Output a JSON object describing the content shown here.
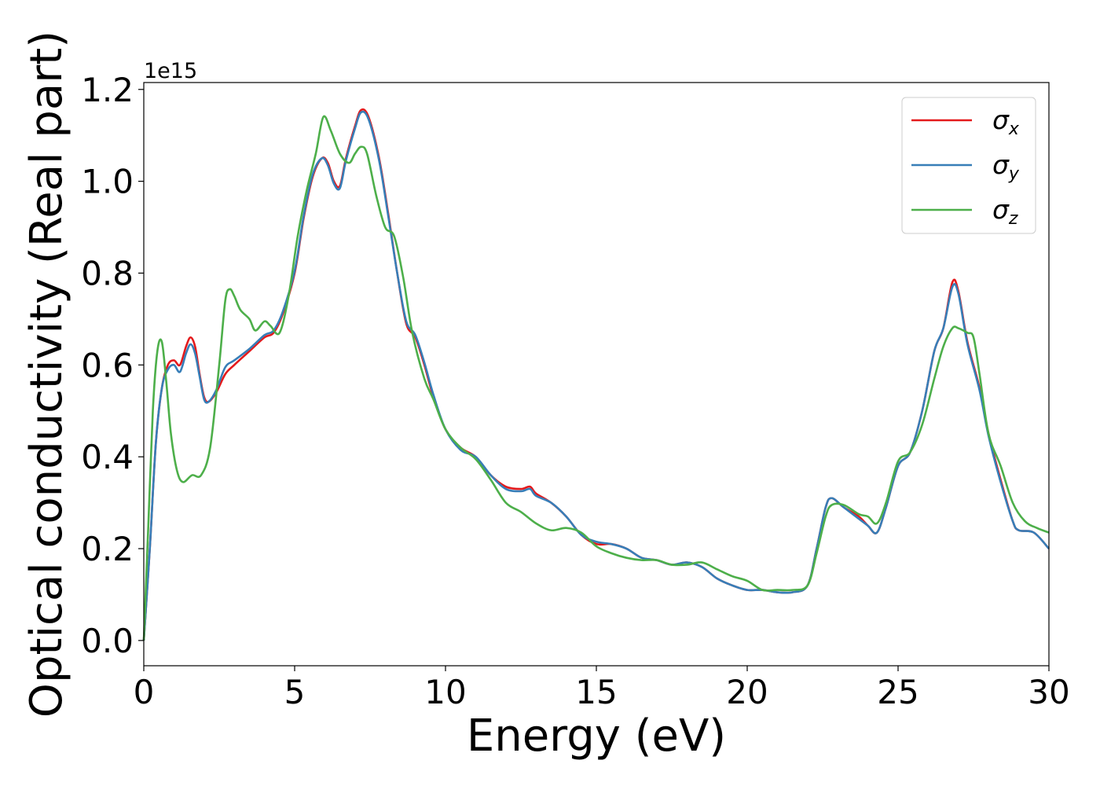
{
  "chart_data": {
    "type": "line",
    "title": "",
    "xlabel": "Energy (eV)",
    "ylabel": "Optical conductivity (Real part)",
    "y_offset_label": "1e15",
    "xlim": [
      0,
      30
    ],
    "ylim": [
      -0.055,
      1.215
    ],
    "grid": false,
    "legend_position": "top-right",
    "x_ticks": [
      0,
      5,
      10,
      15,
      20,
      25,
      30
    ],
    "x_tick_labels": [
      "0",
      "5",
      "10",
      "15",
      "20",
      "25",
      "30"
    ],
    "y_ticks": [
      0.0,
      0.2,
      0.4,
      0.6,
      0.8,
      1.0,
      1.2
    ],
    "y_tick_labels": [
      "0.0",
      "0.2",
      "0.4",
      "0.6",
      "0.8",
      "1.0",
      "1.2"
    ],
    "series": [
      {
        "name": "σx",
        "symbol": "σ",
        "subscript": "x",
        "color": "#e41a1c",
        "points": [
          [
            0,
            0.0
          ],
          [
            0.2,
            0.2
          ],
          [
            0.4,
            0.43
          ],
          [
            0.6,
            0.55
          ],
          [
            0.8,
            0.6
          ],
          [
            1.0,
            0.61
          ],
          [
            1.2,
            0.6
          ],
          [
            1.4,
            0.64
          ],
          [
            1.55,
            0.66
          ],
          [
            1.7,
            0.64
          ],
          [
            1.85,
            0.58
          ],
          [
            2.0,
            0.53
          ],
          [
            2.15,
            0.52
          ],
          [
            2.4,
            0.54
          ],
          [
            2.7,
            0.58
          ],
          [
            3.0,
            0.6
          ],
          [
            3.5,
            0.63
          ],
          [
            4.0,
            0.66
          ],
          [
            4.3,
            0.67
          ],
          [
            4.6,
            0.71
          ],
          [
            5.0,
            0.8
          ],
          [
            5.3,
            0.92
          ],
          [
            5.6,
            1.01
          ],
          [
            5.9,
            1.05
          ],
          [
            6.1,
            1.04
          ],
          [
            6.3,
            1.0
          ],
          [
            6.5,
            0.99
          ],
          [
            6.7,
            1.05
          ],
          [
            7.0,
            1.12
          ],
          [
            7.2,
            1.155
          ],
          [
            7.45,
            1.14
          ],
          [
            7.8,
            1.05
          ],
          [
            8.1,
            0.93
          ],
          [
            8.4,
            0.8
          ],
          [
            8.7,
            0.69
          ],
          [
            9.0,
            0.66
          ],
          [
            9.3,
            0.6
          ],
          [
            9.6,
            0.53
          ],
          [
            10.0,
            0.46
          ],
          [
            10.5,
            0.42
          ],
          [
            11.0,
            0.4
          ],
          [
            11.5,
            0.36
          ],
          [
            12.0,
            0.335
          ],
          [
            12.5,
            0.33
          ],
          [
            12.8,
            0.335
          ],
          [
            13.0,
            0.32
          ],
          [
            13.5,
            0.3
          ],
          [
            14.0,
            0.27
          ],
          [
            14.5,
            0.23
          ],
          [
            15.0,
            0.21
          ],
          [
            15.5,
            0.21
          ],
          [
            16.0,
            0.2
          ],
          [
            16.5,
            0.18
          ],
          [
            17.0,
            0.175
          ],
          [
            17.5,
            0.165
          ],
          [
            18.0,
            0.17
          ],
          [
            18.5,
            0.16
          ],
          [
            19.0,
            0.135
          ],
          [
            19.5,
            0.12
          ],
          [
            20.0,
            0.11
          ],
          [
            20.5,
            0.11
          ],
          [
            21.0,
            0.105
          ],
          [
            21.5,
            0.105
          ],
          [
            22.0,
            0.12
          ],
          [
            22.3,
            0.2
          ],
          [
            22.6,
            0.29
          ],
          [
            22.8,
            0.31
          ],
          [
            23.2,
            0.29
          ],
          [
            23.7,
            0.27
          ],
          [
            24.0,
            0.25
          ],
          [
            24.3,
            0.235
          ],
          [
            24.6,
            0.29
          ],
          [
            25.0,
            0.38
          ],
          [
            25.4,
            0.41
          ],
          [
            25.8,
            0.5
          ],
          [
            26.2,
            0.63
          ],
          [
            26.5,
            0.68
          ],
          [
            26.8,
            0.78
          ],
          [
            27.0,
            0.76
          ],
          [
            27.3,
            0.65
          ],
          [
            27.7,
            0.55
          ],
          [
            28.0,
            0.45
          ],
          [
            28.4,
            0.35
          ],
          [
            28.8,
            0.26
          ],
          [
            29.0,
            0.24
          ],
          [
            29.5,
            0.235
          ],
          [
            30.0,
            0.2
          ]
        ]
      },
      {
        "name": "σy",
        "symbol": "σ",
        "subscript": "y",
        "color": "#377eb8",
        "points": [
          [
            0,
            0.0
          ],
          [
            0.2,
            0.2
          ],
          [
            0.4,
            0.43
          ],
          [
            0.6,
            0.55
          ],
          [
            0.8,
            0.59
          ],
          [
            1.0,
            0.6
          ],
          [
            1.2,
            0.585
          ],
          [
            1.4,
            0.625
          ],
          [
            1.55,
            0.645
          ],
          [
            1.7,
            0.625
          ],
          [
            1.85,
            0.575
          ],
          [
            2.0,
            0.525
          ],
          [
            2.15,
            0.52
          ],
          [
            2.4,
            0.545
          ],
          [
            2.7,
            0.595
          ],
          [
            3.0,
            0.61
          ],
          [
            3.5,
            0.635
          ],
          [
            4.0,
            0.665
          ],
          [
            4.3,
            0.675
          ],
          [
            4.6,
            0.715
          ],
          [
            5.0,
            0.805
          ],
          [
            5.3,
            0.925
          ],
          [
            5.6,
            1.015
          ],
          [
            5.9,
            1.05
          ],
          [
            6.1,
            1.035
          ],
          [
            6.3,
            0.995
          ],
          [
            6.5,
            0.985
          ],
          [
            6.7,
            1.045
          ],
          [
            7.0,
            1.115
          ],
          [
            7.2,
            1.15
          ],
          [
            7.45,
            1.135
          ],
          [
            7.8,
            1.045
          ],
          [
            8.1,
            0.925
          ],
          [
            8.4,
            0.8
          ],
          [
            8.7,
            0.695
          ],
          [
            9.0,
            0.665
          ],
          [
            9.3,
            0.605
          ],
          [
            9.6,
            0.535
          ],
          [
            10.0,
            0.46
          ],
          [
            10.5,
            0.415
          ],
          [
            11.0,
            0.4
          ],
          [
            11.5,
            0.36
          ],
          [
            12.0,
            0.33
          ],
          [
            12.5,
            0.325
          ],
          [
            12.8,
            0.33
          ],
          [
            13.0,
            0.315
          ],
          [
            13.5,
            0.3
          ],
          [
            14.0,
            0.27
          ],
          [
            14.5,
            0.23
          ],
          [
            15.0,
            0.215
          ],
          [
            15.5,
            0.21
          ],
          [
            16.0,
            0.2
          ],
          [
            16.5,
            0.18
          ],
          [
            17.0,
            0.175
          ],
          [
            17.5,
            0.165
          ],
          [
            18.0,
            0.17
          ],
          [
            18.5,
            0.16
          ],
          [
            19.0,
            0.135
          ],
          [
            19.5,
            0.12
          ],
          [
            20.0,
            0.11
          ],
          [
            20.5,
            0.11
          ],
          [
            21.0,
            0.105
          ],
          [
            21.5,
            0.105
          ],
          [
            22.0,
            0.12
          ],
          [
            22.3,
            0.2
          ],
          [
            22.6,
            0.29
          ],
          [
            22.8,
            0.31
          ],
          [
            23.2,
            0.29
          ],
          [
            23.7,
            0.265
          ],
          [
            24.0,
            0.25
          ],
          [
            24.3,
            0.235
          ],
          [
            24.6,
            0.29
          ],
          [
            25.0,
            0.38
          ],
          [
            25.4,
            0.41
          ],
          [
            25.8,
            0.5
          ],
          [
            26.2,
            0.63
          ],
          [
            26.5,
            0.68
          ],
          [
            26.8,
            0.77
          ],
          [
            27.0,
            0.755
          ],
          [
            27.3,
            0.645
          ],
          [
            27.7,
            0.545
          ],
          [
            28.0,
            0.445
          ],
          [
            28.4,
            0.345
          ],
          [
            28.8,
            0.26
          ],
          [
            29.0,
            0.24
          ],
          [
            29.5,
            0.235
          ],
          [
            30.0,
            0.2
          ]
        ]
      },
      {
        "name": "σz",
        "symbol": "σ",
        "subscript": "z",
        "color": "#4daf4a",
        "points": [
          [
            0,
            0.0
          ],
          [
            0.15,
            0.25
          ],
          [
            0.3,
            0.5
          ],
          [
            0.45,
            0.63
          ],
          [
            0.6,
            0.65
          ],
          [
            0.75,
            0.56
          ],
          [
            0.9,
            0.45
          ],
          [
            1.1,
            0.37
          ],
          [
            1.3,
            0.345
          ],
          [
            1.6,
            0.36
          ],
          [
            1.9,
            0.36
          ],
          [
            2.2,
            0.42
          ],
          [
            2.5,
            0.6
          ],
          [
            2.7,
            0.74
          ],
          [
            2.85,
            0.765
          ],
          [
            3.0,
            0.75
          ],
          [
            3.2,
            0.72
          ],
          [
            3.5,
            0.7
          ],
          [
            3.7,
            0.675
          ],
          [
            4.0,
            0.695
          ],
          [
            4.2,
            0.685
          ],
          [
            4.5,
            0.67
          ],
          [
            4.8,
            0.75
          ],
          [
            5.1,
            0.88
          ],
          [
            5.4,
            0.98
          ],
          [
            5.7,
            1.06
          ],
          [
            5.95,
            1.14
          ],
          [
            6.2,
            1.11
          ],
          [
            6.5,
            1.06
          ],
          [
            6.8,
            1.04
          ],
          [
            7.0,
            1.06
          ],
          [
            7.2,
            1.075
          ],
          [
            7.4,
            1.06
          ],
          [
            7.7,
            0.97
          ],
          [
            8.0,
            0.9
          ],
          [
            8.3,
            0.88
          ],
          [
            8.6,
            0.79
          ],
          [
            8.9,
            0.67
          ],
          [
            9.3,
            0.57
          ],
          [
            9.6,
            0.525
          ],
          [
            10.0,
            0.46
          ],
          [
            10.5,
            0.42
          ],
          [
            11.0,
            0.395
          ],
          [
            11.5,
            0.35
          ],
          [
            12.0,
            0.3
          ],
          [
            12.5,
            0.28
          ],
          [
            13.0,
            0.255
          ],
          [
            13.5,
            0.24
          ],
          [
            14.0,
            0.245
          ],
          [
            14.5,
            0.235
          ],
          [
            15.0,
            0.205
          ],
          [
            15.5,
            0.19
          ],
          [
            16.0,
            0.18
          ],
          [
            16.5,
            0.175
          ],
          [
            17.0,
            0.175
          ],
          [
            17.5,
            0.165
          ],
          [
            18.0,
            0.165
          ],
          [
            18.5,
            0.17
          ],
          [
            19.0,
            0.155
          ],
          [
            19.5,
            0.14
          ],
          [
            20.0,
            0.13
          ],
          [
            20.5,
            0.11
          ],
          [
            21.0,
            0.11
          ],
          [
            21.5,
            0.11
          ],
          [
            22.0,
            0.12
          ],
          [
            22.3,
            0.19
          ],
          [
            22.6,
            0.27
          ],
          [
            22.8,
            0.295
          ],
          [
            23.2,
            0.295
          ],
          [
            23.7,
            0.275
          ],
          [
            24.0,
            0.27
          ],
          [
            24.3,
            0.255
          ],
          [
            24.6,
            0.3
          ],
          [
            25.0,
            0.39
          ],
          [
            25.4,
            0.41
          ],
          [
            25.8,
            0.47
          ],
          [
            26.2,
            0.57
          ],
          [
            26.5,
            0.64
          ],
          [
            26.8,
            0.68
          ],
          [
            27.0,
            0.68
          ],
          [
            27.3,
            0.67
          ],
          [
            27.5,
            0.66
          ],
          [
            27.7,
            0.58
          ],
          [
            28.0,
            0.45
          ],
          [
            28.4,
            0.38
          ],
          [
            28.8,
            0.3
          ],
          [
            29.2,
            0.26
          ],
          [
            29.6,
            0.245
          ],
          [
            30.0,
            0.235
          ]
        ]
      }
    ]
  }
}
